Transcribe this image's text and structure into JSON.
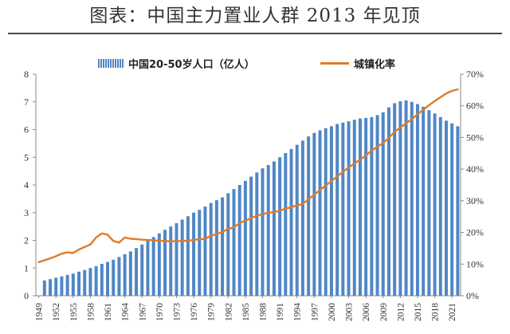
{
  "title": "图表：中国主力置业人群 2013 年见顶",
  "chart_data": {
    "type": "bar",
    "title": "图表：中国主力置业人群 2013 年见顶",
    "xlabel": "",
    "ylabel": "",
    "legend_position": "top",
    "left_axis": {
      "ylim": [
        0,
        8
      ],
      "ticks": [
        "0",
        "1",
        "2",
        "3",
        "4",
        "5",
        "6",
        "7",
        "8"
      ]
    },
    "right_axis": {
      "ylim": [
        0,
        70
      ],
      "ticks": [
        "0%",
        "10%",
        "20%",
        "30%",
        "40%",
        "50%",
        "60%",
        "70%"
      ]
    },
    "x_tick_labels": [
      "1949",
      "1952",
      "1955",
      "1958",
      "1961",
      "1964",
      "1967",
      "1970",
      "1973",
      "1976",
      "1979",
      "1982",
      "1985",
      "1988",
      "1991",
      "1994",
      "1997",
      "2000",
      "2003",
      "2006",
      "2009",
      "2012",
      "2015",
      "2018",
      "2021"
    ],
    "series": [
      {
        "name": "中国20-50岁人口（亿人）",
        "type": "bar",
        "axis": "left",
        "color": "#4f86c6",
        "x": [
          1950,
          1951,
          1952,
          1953,
          1954,
          1955,
          1956,
          1957,
          1958,
          1959,
          1960,
          1961,
          1962,
          1963,
          1964,
          1965,
          1966,
          1967,
          1968,
          1969,
          1970,
          1971,
          1972,
          1973,
          1974,
          1975,
          1976,
          1977,
          1978,
          1979,
          1980,
          1981,
          1982,
          1983,
          1984,
          1985,
          1986,
          1987,
          1988,
          1989,
          1990,
          1991,
          1992,
          1993,
          1994,
          1995,
          1996,
          1997,
          1998,
          1999,
          2000,
          2001,
          2002,
          2003,
          2004,
          2005,
          2006,
          2007,
          2008,
          2009,
          2010,
          2011,
          2012,
          2013,
          2014,
          2015,
          2016,
          2017,
          2018,
          2019,
          2020,
          2021,
          2022
        ],
        "values": [
          0.55,
          0.6,
          0.65,
          0.7,
          0.75,
          0.8,
          0.87,
          0.93,
          1.0,
          1.07,
          1.15,
          1.22,
          1.3,
          1.4,
          1.5,
          1.6,
          1.72,
          1.85,
          2.0,
          2.12,
          2.25,
          2.38,
          2.5,
          2.62,
          2.75,
          2.87,
          3.0,
          3.1,
          3.22,
          3.35,
          3.45,
          3.55,
          3.7,
          3.85,
          4.0,
          4.15,
          4.3,
          4.45,
          4.6,
          4.72,
          4.85,
          5.0,
          5.15,
          5.3,
          5.45,
          5.6,
          5.75,
          5.88,
          5.97,
          6.05,
          6.12,
          6.2,
          6.25,
          6.3,
          6.35,
          6.4,
          6.42,
          6.45,
          6.52,
          6.62,
          6.8,
          6.95,
          7.02,
          7.05,
          7.0,
          6.92,
          6.82,
          6.7,
          6.58,
          6.45,
          6.32,
          6.22,
          6.12
        ]
      },
      {
        "name": "城镇化率",
        "type": "line",
        "axis": "right",
        "color": "#e07b28",
        "x": [
          1949,
          1950,
          1951,
          1952,
          1953,
          1954,
          1955,
          1956,
          1957,
          1958,
          1959,
          1960,
          1961,
          1962,
          1963,
          1964,
          1965,
          1966,
          1967,
          1968,
          1969,
          1970,
          1971,
          1972,
          1973,
          1974,
          1975,
          1976,
          1977,
          1978,
          1979,
          1980,
          1981,
          1982,
          1983,
          1984,
          1985,
          1986,
          1987,
          1988,
          1989,
          1990,
          1991,
          1992,
          1993,
          1994,
          1995,
          1996,
          1997,
          1998,
          1999,
          2000,
          2001,
          2002,
          2003,
          2004,
          2005,
          2006,
          2007,
          2008,
          2009,
          2010,
          2011,
          2012,
          2013,
          2014,
          2015,
          2016,
          2017,
          2018,
          2019,
          2020,
          2021,
          2022
        ],
        "values": [
          10.6,
          11.2,
          11.8,
          12.5,
          13.3,
          13.7,
          13.5,
          14.6,
          15.4,
          16.2,
          18.4,
          19.7,
          19.3,
          17.3,
          16.8,
          18.4,
          18.0,
          17.9,
          17.7,
          17.6,
          17.5,
          17.4,
          17.3,
          17.2,
          17.2,
          17.3,
          17.4,
          17.6,
          17.9,
          17.9,
          19.0,
          19.4,
          20.2,
          21.1,
          21.6,
          23.0,
          23.7,
          24.5,
          25.3,
          25.8,
          26.2,
          26.4,
          26.9,
          27.5,
          28.0,
          28.5,
          29.0,
          30.5,
          31.9,
          33.4,
          34.8,
          36.2,
          37.7,
          39.1,
          40.5,
          41.8,
          43.0,
          44.3,
          45.9,
          47.0,
          48.3,
          49.9,
          51.8,
          53.1,
          54.5,
          55.8,
          57.3,
          58.8,
          60.2,
          61.5,
          62.7,
          63.9,
          64.7,
          65.2
        ]
      }
    ]
  }
}
